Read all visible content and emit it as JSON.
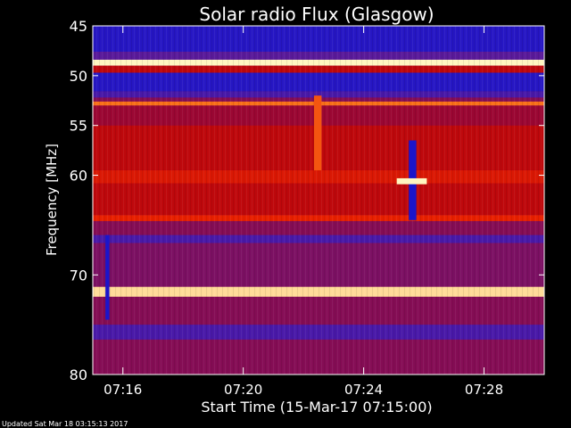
{
  "chart_data": {
    "type": "heatmap",
    "title": "Solar radio Flux (Glasgow)",
    "xlabel": "Start Time (15-Mar-17 07:15:00)",
    "ylabel": "Frequency [MHz]",
    "x_start": "07:15:00",
    "x_end": "07:30:00",
    "x_minutes_range": [
      0,
      15
    ],
    "xticks": [
      {
        "label": "07:16",
        "minutes": 1
      },
      {
        "label": "07:20",
        "minutes": 5
      },
      {
        "label": "07:24",
        "minutes": 9
      },
      {
        "label": "07:28",
        "minutes": 13
      }
    ],
    "ylim": [
      45,
      80
    ],
    "y_inverted": true,
    "yticks": [
      45,
      50,
      55,
      60,
      70,
      80
    ],
    "colormap": [
      "#1414d0",
      "#5a1a9a",
      "#b00010",
      "#e82000",
      "#ff8a20",
      "#fff6c0"
    ],
    "bands": [
      {
        "f0": 45.0,
        "f1": 47.6,
        "level": 0.05
      },
      {
        "f0": 47.6,
        "f1": 48.4,
        "level": 0.2
      },
      {
        "f0": 48.4,
        "f1": 49.0,
        "level": 1.0
      },
      {
        "f0": 49.0,
        "f1": 49.7,
        "level": 0.45
      },
      {
        "f0": 49.7,
        "f1": 51.6,
        "level": 0.05
      },
      {
        "f0": 51.6,
        "f1": 52.2,
        "level": 0.15
      },
      {
        "f0": 52.2,
        "f1": 52.6,
        "level": 0.3
      },
      {
        "f0": 52.6,
        "f1": 53.0,
        "level": 0.75
      },
      {
        "f0": 53.0,
        "f1": 55.0,
        "level": 0.35
      },
      {
        "f0": 55.0,
        "f1": 59.5,
        "level": 0.45
      },
      {
        "f0": 59.5,
        "f1": 60.8,
        "level": 0.55
      },
      {
        "f0": 60.8,
        "f1": 64.0,
        "level": 0.45
      },
      {
        "f0": 64.0,
        "f1": 64.6,
        "level": 0.6
      },
      {
        "f0": 64.6,
        "f1": 66.0,
        "level": 0.3
      },
      {
        "f0": 66.0,
        "f1": 66.8,
        "level": 0.15
      },
      {
        "f0": 66.8,
        "f1": 71.2,
        "level": 0.28
      },
      {
        "f0": 71.2,
        "f1": 72.2,
        "level": 0.95
      },
      {
        "f0": 72.2,
        "f1": 75.0,
        "level": 0.3
      },
      {
        "f0": 75.0,
        "f1": 76.5,
        "level": 0.15
      },
      {
        "f0": 76.5,
        "f1": 80.0,
        "level": 0.3
      }
    ],
    "features": [
      {
        "t0": 0.42,
        "t1": 0.55,
        "f0": 66.0,
        "f1": 74.5,
        "level": 0.02,
        "label": "blue dropout near 07:15"
      },
      {
        "t0": 7.35,
        "t1": 7.6,
        "f0": 52.0,
        "f1": 59.5,
        "level": 0.7,
        "label": "bright vertical streak"
      },
      {
        "t0": 10.5,
        "t1": 10.75,
        "f0": 56.5,
        "f1": 64.5,
        "level": 0.02,
        "label": "blue vertical dropout"
      },
      {
        "t0": 10.1,
        "t1": 11.1,
        "f0": 60.3,
        "f1": 60.9,
        "level": 1.0,
        "label": "burst near 60 MHz"
      }
    ]
  },
  "footer": {
    "updated": "Updated Sat Mar 18 03:15:13 2017"
  }
}
